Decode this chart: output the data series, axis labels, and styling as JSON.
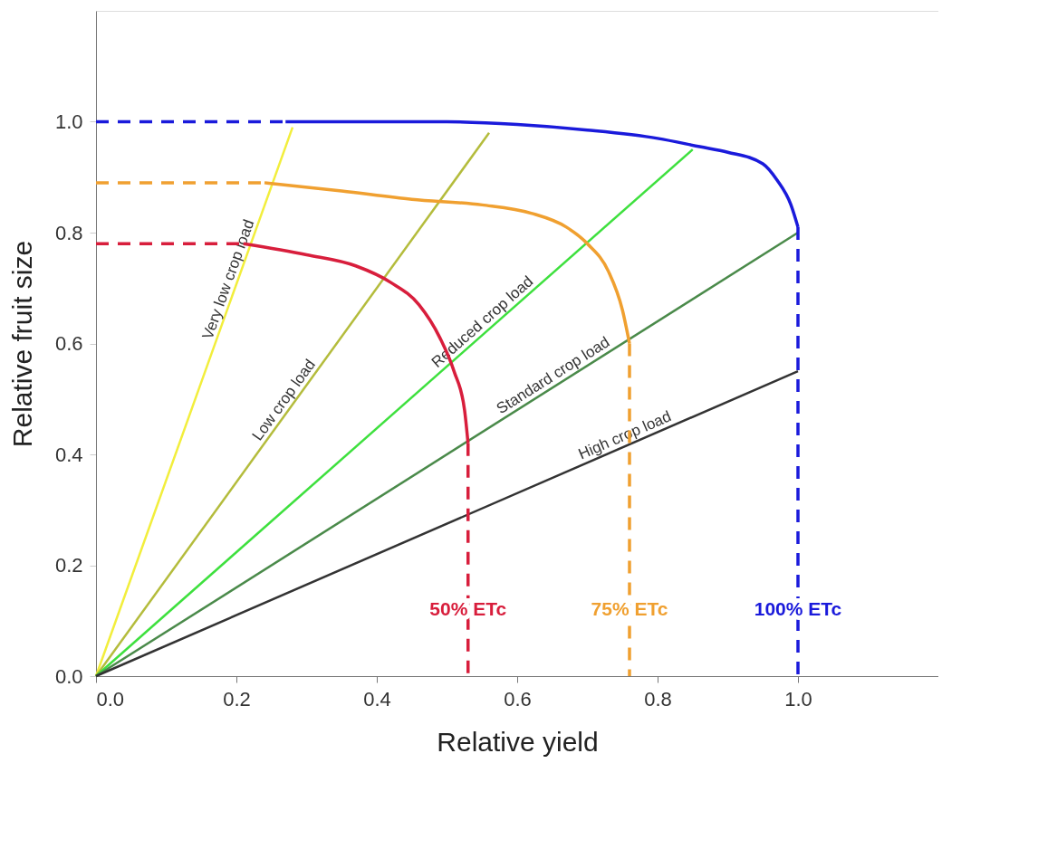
{
  "chart_data": {
    "type": "line",
    "xlabel": "Relative yield",
    "ylabel": "Relative fruit size",
    "xlim": [
      0,
      1.2
    ],
    "ylim": [
      0,
      1.2
    ],
    "xticks": [
      {
        "value": 0,
        "label": "0.0"
      },
      0.2,
      0.4,
      0.6,
      0.8,
      {
        "value": 1,
        "label": "1.0"
      }
    ],
    "yticks": [
      {
        "value": 0,
        "label": "0.0"
      },
      0.2,
      0.4,
      0.6,
      0.8,
      {
        "value": 1,
        "label": "1.0"
      }
    ],
    "grid": false,
    "legend": false,
    "line_style": "solid",
    "marker": "none",
    "series": [
      {
        "name": "Very low crop load",
        "color": "#f2ee3c",
        "x": [
          0,
          0.28
        ],
        "values": [
          0,
          0.99
        ]
      },
      {
        "name": "Low crop load",
        "color": "#b4bc3c",
        "x": [
          0,
          0.56
        ],
        "values": [
          0,
          0.98
        ]
      },
      {
        "name": "Reduced crop load",
        "color": "#3ee03e",
        "x": [
          0,
          0.85
        ],
        "values": [
          0,
          0.95
        ]
      },
      {
        "name": "Standard crop load",
        "color": "#4a8a4a",
        "x": [
          0,
          1.0
        ],
        "values": [
          0,
          0.8
        ]
      },
      {
        "name": "High crop load",
        "color": "#333333",
        "x": [
          0,
          1.0
        ],
        "values": [
          0,
          0.55
        ]
      },
      {
        "color": "#1a1adb",
        "x": [
          0.27,
          0.5,
          0.6,
          0.7,
          0.8,
          0.86,
          0.9,
          0.95,
          0.97,
          0.99,
          1.0
        ],
        "values": [
          1.0,
          1.0,
          0.995,
          0.985,
          0.97,
          0.955,
          0.945,
          0.924,
          0.895,
          0.85,
          0.81
        ]
      },
      {
        "color": "#f0a030",
        "x": [
          0.24,
          0.35,
          0.45,
          0.55,
          0.62,
          0.67,
          0.7,
          0.73,
          0.75,
          0.76
        ],
        "values": [
          0.89,
          0.875,
          0.86,
          0.85,
          0.835,
          0.81,
          0.78,
          0.73,
          0.66,
          0.6
        ]
      },
      {
        "color": "#d81e3c",
        "x": [
          0.21,
          0.3,
          0.37,
          0.42,
          0.46,
          0.49,
          0.51,
          0.525,
          0.53
        ],
        "values": [
          0.78,
          0.76,
          0.74,
          0.71,
          0.67,
          0.61,
          0.55,
          0.48,
          0.42
        ]
      },
      {
        "color": "#1a1adb",
        "line_style": "dashed",
        "x": [
          0,
          0.27
        ],
        "values": [
          1.0,
          1.0
        ]
      },
      {
        "color": "#f0a030",
        "line_style": "dashed",
        "x": [
          0,
          0.24
        ],
        "values": [
          0.89,
          0.89
        ]
      },
      {
        "color": "#d81e3c",
        "line_style": "dashed",
        "x": [
          0,
          0.21
        ],
        "values": [
          0.78,
          0.78
        ]
      },
      {
        "color": "#1a1adb",
        "line_style": "dashed",
        "x": [
          1.0,
          1.0
        ],
        "values": [
          0.81,
          0
        ]
      },
      {
        "color": "#f0a030",
        "line_style": "dashed",
        "x": [
          0.76,
          0.76
        ],
        "values": [
          0.6,
          0
        ]
      },
      {
        "color": "#d81e3c",
        "line_style": "dashed",
        "x": [
          0.53,
          0.53
        ],
        "values": [
          0.42,
          0
        ]
      }
    ],
    "annotations": [
      {
        "text": "50% ETc",
        "x": 0.53,
        "y": 0.12
      },
      {
        "text": "75% ETc",
        "x": 0.76,
        "y": 0.12
      },
      {
        "text": "100% ETc",
        "x": 1.0,
        "y": 0.12
      }
    ]
  }
}
